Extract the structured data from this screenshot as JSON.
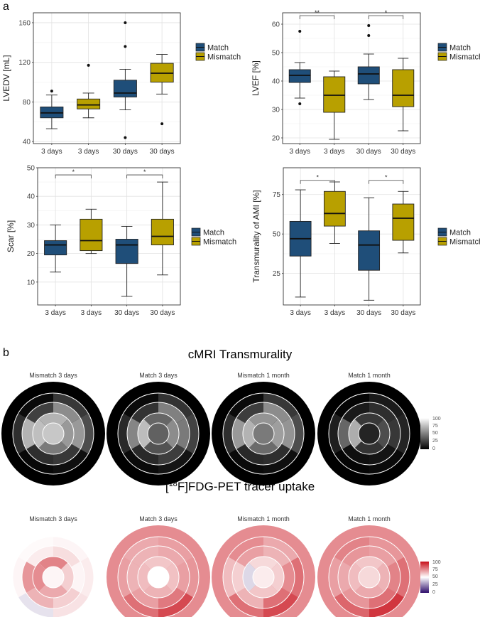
{
  "panel_a_label": "a",
  "panel_b_label": "b",
  "colors": {
    "match": "#1f4e79",
    "mismatch": "#b8a000"
  },
  "legend": {
    "match": "Match",
    "mismatch": "Mismatch"
  },
  "chart_data": [
    {
      "type": "box",
      "ylabel": "LVEDV [mL]",
      "ylim": [
        38,
        170
      ],
      "yticks": [
        40,
        80,
        120,
        160
      ],
      "categories": [
        "3 days",
        "3 days",
        "30 days",
        "30 days"
      ],
      "groups": [
        "Match",
        "Mismatch",
        "Match",
        "Mismatch"
      ],
      "boxes": [
        {
          "min": 53,
          "q1": 64,
          "median": 69,
          "q3": 75,
          "max": 87,
          "outliers": [
            91
          ]
        },
        {
          "min": 64,
          "q1": 73,
          "median": 77,
          "q3": 83,
          "max": 89,
          "outliers": [
            117
          ]
        },
        {
          "min": 72,
          "q1": 85,
          "median": 89,
          "q3": 102,
          "max": 113,
          "outliers": [
            160,
            136,
            44
          ]
        },
        {
          "min": 88,
          "q1": 100,
          "median": 109,
          "q3": 119,
          "max": 128,
          "outliers": [
            58
          ]
        }
      ],
      "brackets": []
    },
    {
      "type": "box",
      "ylabel": "LVEF [%]",
      "ylim": [
        18,
        64
      ],
      "yticks": [
        20,
        30,
        40,
        50,
        60
      ],
      "categories": [
        "3 days",
        "3 days",
        "30 days",
        "30 days"
      ],
      "groups": [
        "Match",
        "Mismatch",
        "Match",
        "Mismatch"
      ],
      "boxes": [
        {
          "min": 34,
          "q1": 39.5,
          "median": 42,
          "q3": 44,
          "max": 46.5,
          "outliers": [
            57.5,
            32
          ]
        },
        {
          "min": 19.5,
          "q1": 29,
          "median": 35,
          "q3": 41.5,
          "max": 43.5,
          "outliers": []
        },
        {
          "min": 33.5,
          "q1": 39,
          "median": 42.5,
          "q3": 45,
          "max": 49.5,
          "outliers": [
            59.5,
            56
          ]
        },
        {
          "min": 22.5,
          "q1": 31,
          "median": 35,
          "q3": 44,
          "max": 48,
          "outliers": []
        }
      ],
      "brackets": [
        {
          "from": 0,
          "to": 1,
          "label": "**",
          "y": 63
        },
        {
          "from": 2,
          "to": 3,
          "label": "*",
          "y": 63
        }
      ]
    },
    {
      "type": "box",
      "ylabel": "Scar [%]",
      "ylim": [
        2,
        50
      ],
      "yticks": [
        10,
        20,
        30,
        40,
        50
      ],
      "categories": [
        "3 days",
        "3 days",
        "30 days",
        "30 days"
      ],
      "groups": [
        "Match",
        "Mismatch",
        "Match",
        "Mismatch"
      ],
      "boxes": [
        {
          "min": 13.5,
          "q1": 19.5,
          "median": 23,
          "q3": 24.5,
          "max": 30,
          "outliers": []
        },
        {
          "min": 20,
          "q1": 21,
          "median": 24.5,
          "q3": 32,
          "max": 35.5,
          "outliers": []
        },
        {
          "min": 5,
          "q1": 16.5,
          "median": 23,
          "q3": 25,
          "max": 29.5,
          "outliers": []
        },
        {
          "min": 12.5,
          "q1": 23,
          "median": 26,
          "q3": 32,
          "max": 45,
          "outliers": []
        }
      ],
      "brackets": [
        {
          "from": 0,
          "to": 1,
          "label": "*",
          "y": 47.5
        },
        {
          "from": 2,
          "to": 3,
          "label": "*",
          "y": 47.5
        }
      ]
    },
    {
      "type": "box",
      "ylabel": "Transmurality of AMI [%]",
      "ylim": [
        5,
        92
      ],
      "yticks": [
        25,
        50,
        75
      ],
      "categories": [
        "3 days",
        "3 days",
        "30 days",
        "30 days"
      ],
      "groups": [
        "Match",
        "Mismatch",
        "Match",
        "Mismatch"
      ],
      "boxes": [
        {
          "min": 10,
          "q1": 36,
          "median": 47,
          "q3": 58,
          "max": 78,
          "outliers": []
        },
        {
          "min": 44,
          "q1": 55,
          "median": 63,
          "q3": 77,
          "max": 83,
          "outliers": []
        },
        {
          "min": 8,
          "q1": 27,
          "median": 43,
          "q3": 52,
          "max": 73,
          "outliers": []
        },
        {
          "min": 38,
          "q1": 46,
          "median": 60,
          "q3": 69,
          "max": 77,
          "outliers": []
        }
      ],
      "brackets": [
        {
          "from": 0,
          "to": 1,
          "label": "*",
          "y": 84
        },
        {
          "from": 2,
          "to": 3,
          "label": "*",
          "y": 84
        }
      ]
    }
  ],
  "bullseye": {
    "cmri_title": "cMRI Transmurality",
    "pet_title_pre": "[",
    "pet_title_sup": "18",
    "pet_title_post": "F]FDG-PET tracer uptake",
    "cmri_scale": {
      "ticks": [
        "100",
        "75",
        "50",
        "25",
        "0"
      ]
    },
    "pet_scale": {
      "ticks": [
        "100",
        "75",
        "50",
        "25",
        "0"
      ]
    },
    "cmri": [
      {
        "label": "Mismatch 3 days",
        "apex": 78,
        "apical": [
          70,
          60,
          48,
          75
        ],
        "mid": [
          25,
          55,
          60,
          22,
          18,
          70
        ],
        "basal": [
          4,
          22,
          30,
          6,
          3,
          18
        ]
      },
      {
        "label": "Match 3 days",
        "apex": 38,
        "apical": [
          40,
          55,
          32,
          74
        ],
        "mid": [
          20,
          50,
          48,
          24,
          16,
          52
        ],
        "basal": [
          4,
          20,
          26,
          8,
          4,
          16
        ]
      },
      {
        "label": "Mismatch 1 month",
        "apex": 48,
        "apical": [
          58,
          62,
          42,
          70
        ],
        "mid": [
          24,
          55,
          58,
          18,
          16,
          60
        ],
        "basal": [
          4,
          22,
          30,
          6,
          4,
          18
        ]
      },
      {
        "label": "Match 1 month",
        "apex": 14,
        "apical": [
          22,
          30,
          20,
          68
        ],
        "mid": [
          10,
          18,
          22,
          8,
          6,
          40
        ],
        "basal": [
          2,
          10,
          14,
          4,
          2,
          12
        ]
      }
    ],
    "pet": [
      {
        "label": "Mismatch 3 days",
        "apex": 52,
        "apical": [
          76,
          60,
          68,
          74
        ],
        "mid": [
          54,
          57,
          52,
          60,
          66,
          72
        ],
        "basal": [
          51,
          52,
          54,
          56,
          44,
          52
        ]
      },
      {
        "label": "Match 3 days",
        "apex": 50,
        "apical": [
          62,
          63,
          66,
          64
        ],
        "mid": [
          66,
          68,
          70,
          78,
          70,
          66
        ],
        "basal": [
          68,
          70,
          72,
          88,
          80,
          70
        ]
      },
      {
        "label": "Mismatch 1 month",
        "apex": 54,
        "apical": [
          58,
          60,
          62,
          42
        ],
        "mid": [
          70,
          66,
          74,
          80,
          66,
          60
        ],
        "basal": [
          74,
          68,
          80,
          88,
          80,
          64
        ]
      },
      {
        "label": "Match 1 month",
        "apex": 58,
        "apical": [
          62,
          66,
          68,
          64
        ],
        "mid": [
          72,
          70,
          76,
          80,
          72,
          68
        ],
        "basal": [
          76,
          72,
          80,
          92,
          82,
          70
        ]
      }
    ]
  }
}
